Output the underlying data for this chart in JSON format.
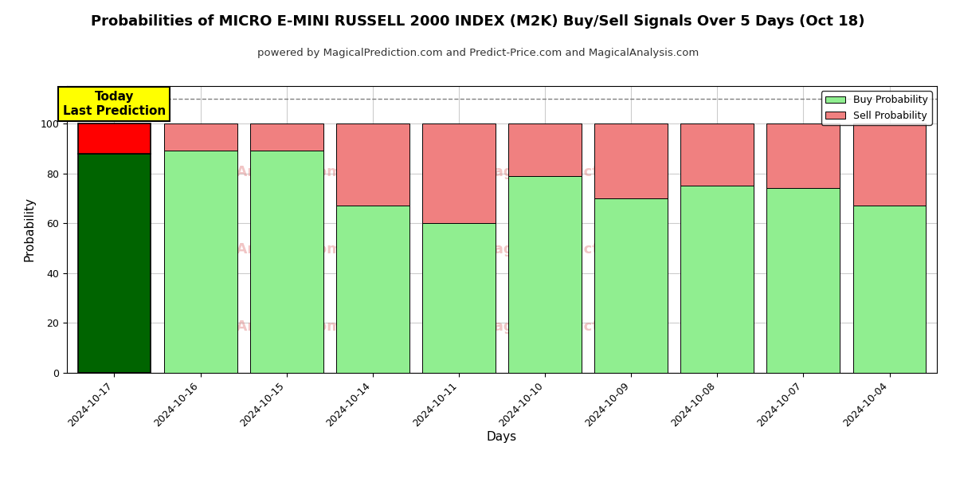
{
  "title": "Probabilities of MICRO E-MINI RUSSELL 2000 INDEX (M2K) Buy/Sell Signals Over 5 Days (Oct 18)",
  "subtitle": "powered by MagicalPrediction.com and Predict-Price.com and MagicalAnalysis.com",
  "xlabel": "Days",
  "ylabel": "Probability",
  "dates": [
    "2024-10-17",
    "2024-10-16",
    "2024-10-15",
    "2024-10-14",
    "2024-10-11",
    "2024-10-10",
    "2024-10-09",
    "2024-10-08",
    "2024-10-07",
    "2024-10-04"
  ],
  "buy_values": [
    88,
    89,
    89,
    67,
    60,
    79,
    70,
    75,
    74,
    67
  ],
  "sell_values": [
    12,
    11,
    11,
    33,
    40,
    21,
    30,
    25,
    26,
    33
  ],
  "today_index": 0,
  "buy_color_today": "#006400",
  "sell_color_today": "#FF0000",
  "buy_color_normal": "#90EE90",
  "sell_color_normal": "#F08080",
  "today_label_bg": "#FFFF00",
  "dashed_line_y": 110,
  "ylim": [
    0,
    115
  ],
  "yticks": [
    0,
    20,
    40,
    60,
    80,
    100
  ],
  "bar_width": 0.85,
  "legend_buy": "Buy Probability",
  "legend_sell": "Sell Probability",
  "background_color": "#ffffff",
  "grid_color": "#cccccc",
  "title_fontsize": 13,
  "subtitle_fontsize": 9.5,
  "axis_label_fontsize": 11,
  "tick_fontsize": 9
}
